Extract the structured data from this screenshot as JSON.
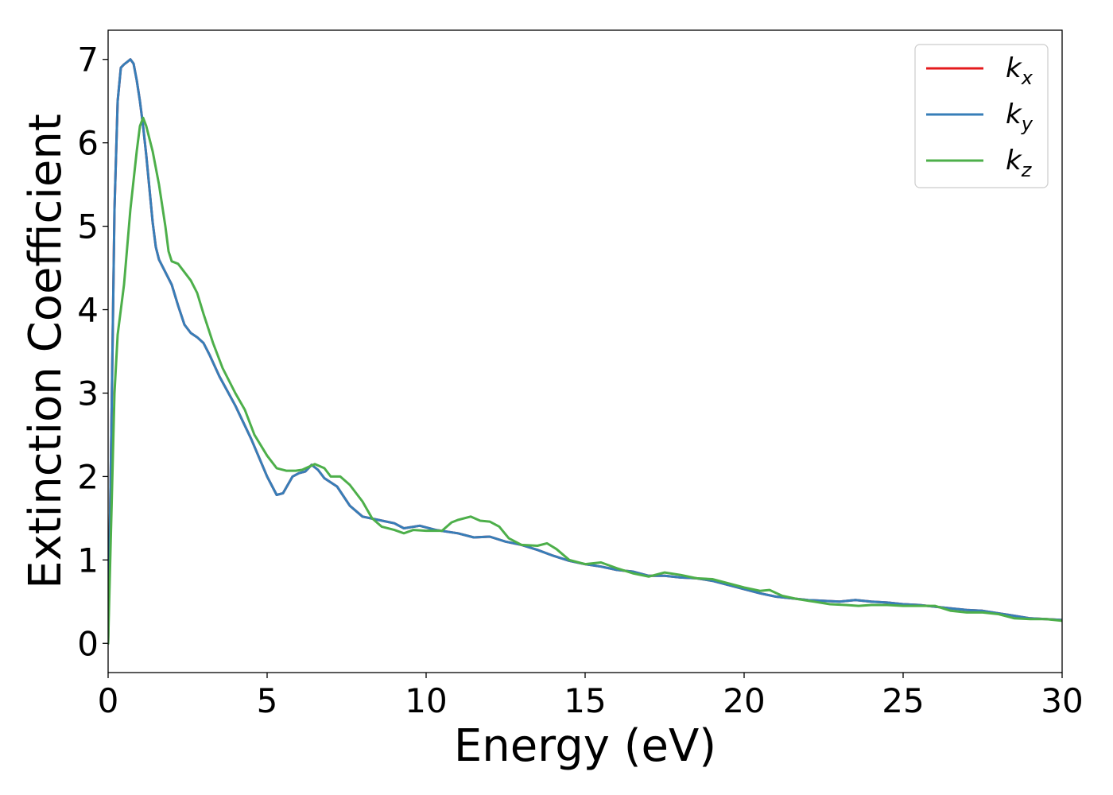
{
  "chart_data": {
    "type": "line",
    "title": "",
    "xlabel": "Energy (eV)",
    "ylabel": "Extinction Coefficient",
    "xlim": [
      0,
      30
    ],
    "ylim": [
      -0.35,
      7.35
    ],
    "xticks": [
      0,
      5,
      10,
      15,
      20,
      25,
      30
    ],
    "yticks": [
      0,
      1,
      2,
      3,
      4,
      5,
      6,
      7
    ],
    "grid": false,
    "legend_position": "top-right",
    "series": [
      {
        "name": "k",
        "subscript": "x",
        "color": "#e41a1c",
        "points": [
          [
            0,
            0
          ],
          [
            0.1,
            2.5
          ],
          [
            0.2,
            5.2
          ],
          [
            0.3,
            6.5
          ],
          [
            0.4,
            6.9
          ],
          [
            0.5,
            6.94
          ],
          [
            0.6,
            6.97
          ],
          [
            0.7,
            7.0
          ],
          [
            0.8,
            6.95
          ],
          [
            0.9,
            6.75
          ],
          [
            1.0,
            6.5
          ],
          [
            1.1,
            6.2
          ],
          [
            1.2,
            5.85
          ],
          [
            1.3,
            5.45
          ],
          [
            1.4,
            5.05
          ],
          [
            1.5,
            4.75
          ],
          [
            1.6,
            4.6
          ],
          [
            1.8,
            4.45
          ],
          [
            2.0,
            4.3
          ],
          [
            2.2,
            4.05
          ],
          [
            2.4,
            3.82
          ],
          [
            2.6,
            3.72
          ],
          [
            2.8,
            3.67
          ],
          [
            3.0,
            3.6
          ],
          [
            3.2,
            3.45
          ],
          [
            3.5,
            3.2
          ],
          [
            4.0,
            2.85
          ],
          [
            4.5,
            2.45
          ],
          [
            5.0,
            2.0
          ],
          [
            5.3,
            1.78
          ],
          [
            5.5,
            1.8
          ],
          [
            5.8,
            2.0
          ],
          [
            6.0,
            2.04
          ],
          [
            6.2,
            2.06
          ],
          [
            6.4,
            2.14
          ],
          [
            6.6,
            2.08
          ],
          [
            6.8,
            1.98
          ],
          [
            7.2,
            1.88
          ],
          [
            7.6,
            1.65
          ],
          [
            8.0,
            1.52
          ],
          [
            8.5,
            1.48
          ],
          [
            9.0,
            1.44
          ],
          [
            9.3,
            1.38
          ],
          [
            9.8,
            1.41
          ],
          [
            10.3,
            1.36
          ],
          [
            11.0,
            1.32
          ],
          [
            11.5,
            1.27
          ],
          [
            12.0,
            1.28
          ],
          [
            12.5,
            1.22
          ],
          [
            13.0,
            1.18
          ],
          [
            13.5,
            1.12
          ],
          [
            14.0,
            1.05
          ],
          [
            14.5,
            0.99
          ],
          [
            15.0,
            0.95
          ],
          [
            15.5,
            0.92
          ],
          [
            16.0,
            0.88
          ],
          [
            16.5,
            0.86
          ],
          [
            17.0,
            0.81
          ],
          [
            17.5,
            0.81
          ],
          [
            18.0,
            0.79
          ],
          [
            18.5,
            0.78
          ],
          [
            19.0,
            0.75
          ],
          [
            19.5,
            0.7
          ],
          [
            20.0,
            0.65
          ],
          [
            20.5,
            0.6
          ],
          [
            21.0,
            0.56
          ],
          [
            21.5,
            0.54
          ],
          [
            22.0,
            0.52
          ],
          [
            22.5,
            0.51
          ],
          [
            23.0,
            0.5
          ],
          [
            23.5,
            0.52
          ],
          [
            24.0,
            0.5
          ],
          [
            24.5,
            0.49
          ],
          [
            25.0,
            0.47
          ],
          [
            25.5,
            0.46
          ],
          [
            26.0,
            0.44
          ],
          [
            26.5,
            0.42
          ],
          [
            27.0,
            0.4
          ],
          [
            27.5,
            0.39
          ],
          [
            28.0,
            0.36
          ],
          [
            28.5,
            0.33
          ],
          [
            29.0,
            0.3
          ],
          [
            29.5,
            0.29
          ],
          [
            30.0,
            0.28
          ]
        ]
      },
      {
        "name": "k",
        "subscript": "y",
        "color": "#377eb8",
        "points": [
          [
            0,
            0
          ],
          [
            0.1,
            2.5
          ],
          [
            0.2,
            5.2
          ],
          [
            0.3,
            6.5
          ],
          [
            0.4,
            6.9
          ],
          [
            0.5,
            6.94
          ],
          [
            0.6,
            6.97
          ],
          [
            0.7,
            7.0
          ],
          [
            0.8,
            6.95
          ],
          [
            0.9,
            6.75
          ],
          [
            1.0,
            6.5
          ],
          [
            1.1,
            6.2
          ],
          [
            1.2,
            5.85
          ],
          [
            1.3,
            5.45
          ],
          [
            1.4,
            5.05
          ],
          [
            1.5,
            4.75
          ],
          [
            1.6,
            4.6
          ],
          [
            1.8,
            4.45
          ],
          [
            2.0,
            4.3
          ],
          [
            2.2,
            4.05
          ],
          [
            2.4,
            3.82
          ],
          [
            2.6,
            3.72
          ],
          [
            2.8,
            3.67
          ],
          [
            3.0,
            3.6
          ],
          [
            3.2,
            3.45
          ],
          [
            3.5,
            3.2
          ],
          [
            4.0,
            2.85
          ],
          [
            4.5,
            2.45
          ],
          [
            5.0,
            2.0
          ],
          [
            5.3,
            1.78
          ],
          [
            5.5,
            1.8
          ],
          [
            5.8,
            2.0
          ],
          [
            6.0,
            2.04
          ],
          [
            6.2,
            2.06
          ],
          [
            6.4,
            2.14
          ],
          [
            6.6,
            2.08
          ],
          [
            6.8,
            1.98
          ],
          [
            7.2,
            1.88
          ],
          [
            7.6,
            1.65
          ],
          [
            8.0,
            1.52
          ],
          [
            8.5,
            1.48
          ],
          [
            9.0,
            1.44
          ],
          [
            9.3,
            1.38
          ],
          [
            9.8,
            1.41
          ],
          [
            10.3,
            1.36
          ],
          [
            11.0,
            1.32
          ],
          [
            11.5,
            1.27
          ],
          [
            12.0,
            1.28
          ],
          [
            12.5,
            1.22
          ],
          [
            13.0,
            1.18
          ],
          [
            13.5,
            1.12
          ],
          [
            14.0,
            1.05
          ],
          [
            14.5,
            0.99
          ],
          [
            15.0,
            0.95
          ],
          [
            15.5,
            0.92
          ],
          [
            16.0,
            0.88
          ],
          [
            16.5,
            0.86
          ],
          [
            17.0,
            0.81
          ],
          [
            17.5,
            0.81
          ],
          [
            18.0,
            0.79
          ],
          [
            18.5,
            0.78
          ],
          [
            19.0,
            0.75
          ],
          [
            19.5,
            0.7
          ],
          [
            20.0,
            0.65
          ],
          [
            20.5,
            0.6
          ],
          [
            21.0,
            0.56
          ],
          [
            21.5,
            0.54
          ],
          [
            22.0,
            0.52
          ],
          [
            22.5,
            0.51
          ],
          [
            23.0,
            0.5
          ],
          [
            23.5,
            0.52
          ],
          [
            24.0,
            0.5
          ],
          [
            24.5,
            0.49
          ],
          [
            25.0,
            0.47
          ],
          [
            25.5,
            0.46
          ],
          [
            26.0,
            0.44
          ],
          [
            26.5,
            0.42
          ],
          [
            27.0,
            0.4
          ],
          [
            27.5,
            0.39
          ],
          [
            28.0,
            0.36
          ],
          [
            28.5,
            0.33
          ],
          [
            29.0,
            0.3
          ],
          [
            29.5,
            0.29
          ],
          [
            30.0,
            0.28
          ]
        ]
      },
      {
        "name": "k",
        "subscript": "z",
        "color": "#4daf4a",
        "points": [
          [
            0,
            0
          ],
          [
            0.1,
            1.5
          ],
          [
            0.2,
            3.0
          ],
          [
            0.3,
            3.7
          ],
          [
            0.5,
            4.3
          ],
          [
            0.7,
            5.2
          ],
          [
            0.9,
            5.9
          ],
          [
            1.0,
            6.2
          ],
          [
            1.1,
            6.3
          ],
          [
            1.2,
            6.2
          ],
          [
            1.4,
            5.9
          ],
          [
            1.6,
            5.5
          ],
          [
            1.8,
            5.0
          ],
          [
            1.9,
            4.7
          ],
          [
            2.0,
            4.58
          ],
          [
            2.2,
            4.55
          ],
          [
            2.4,
            4.45
          ],
          [
            2.6,
            4.35
          ],
          [
            2.8,
            4.2
          ],
          [
            3.0,
            3.95
          ],
          [
            3.3,
            3.6
          ],
          [
            3.6,
            3.3
          ],
          [
            4.0,
            3.0
          ],
          [
            4.3,
            2.8
          ],
          [
            4.6,
            2.5
          ],
          [
            5.0,
            2.25
          ],
          [
            5.3,
            2.1
          ],
          [
            5.6,
            2.07
          ],
          [
            5.9,
            2.07
          ],
          [
            6.1,
            2.08
          ],
          [
            6.5,
            2.15
          ],
          [
            6.8,
            2.1
          ],
          [
            7.0,
            2.0
          ],
          [
            7.3,
            2.0
          ],
          [
            7.6,
            1.9
          ],
          [
            8.0,
            1.7
          ],
          [
            8.3,
            1.5
          ],
          [
            8.6,
            1.4
          ],
          [
            9.0,
            1.36
          ],
          [
            9.3,
            1.32
          ],
          [
            9.6,
            1.36
          ],
          [
            10.0,
            1.35
          ],
          [
            10.5,
            1.35
          ],
          [
            10.8,
            1.45
          ],
          [
            11.0,
            1.48
          ],
          [
            11.4,
            1.52
          ],
          [
            11.7,
            1.47
          ],
          [
            12.0,
            1.46
          ],
          [
            12.3,
            1.4
          ],
          [
            12.6,
            1.26
          ],
          [
            13.0,
            1.18
          ],
          [
            13.5,
            1.17
          ],
          [
            13.8,
            1.2
          ],
          [
            14.1,
            1.13
          ],
          [
            14.5,
            1.0
          ],
          [
            15.0,
            0.95
          ],
          [
            15.5,
            0.97
          ],
          [
            16.0,
            0.9
          ],
          [
            16.5,
            0.84
          ],
          [
            17.0,
            0.8
          ],
          [
            17.5,
            0.85
          ],
          [
            18.0,
            0.82
          ],
          [
            18.5,
            0.78
          ],
          [
            19.0,
            0.77
          ],
          [
            19.5,
            0.72
          ],
          [
            20.0,
            0.67
          ],
          [
            20.5,
            0.63
          ],
          [
            20.8,
            0.64
          ],
          [
            21.2,
            0.57
          ],
          [
            21.7,
            0.53
          ],
          [
            22.2,
            0.5
          ],
          [
            22.7,
            0.47
          ],
          [
            23.2,
            0.46
          ],
          [
            23.6,
            0.45
          ],
          [
            24.0,
            0.46
          ],
          [
            24.5,
            0.46
          ],
          [
            25.0,
            0.45
          ],
          [
            25.5,
            0.45
          ],
          [
            26.0,
            0.45
          ],
          [
            26.5,
            0.39
          ],
          [
            27.0,
            0.37
          ],
          [
            27.5,
            0.37
          ],
          [
            28.0,
            0.35
          ],
          [
            28.5,
            0.3
          ],
          [
            29.0,
            0.29
          ],
          [
            29.5,
            0.29
          ],
          [
            30.0,
            0.27
          ]
        ]
      }
    ]
  }
}
